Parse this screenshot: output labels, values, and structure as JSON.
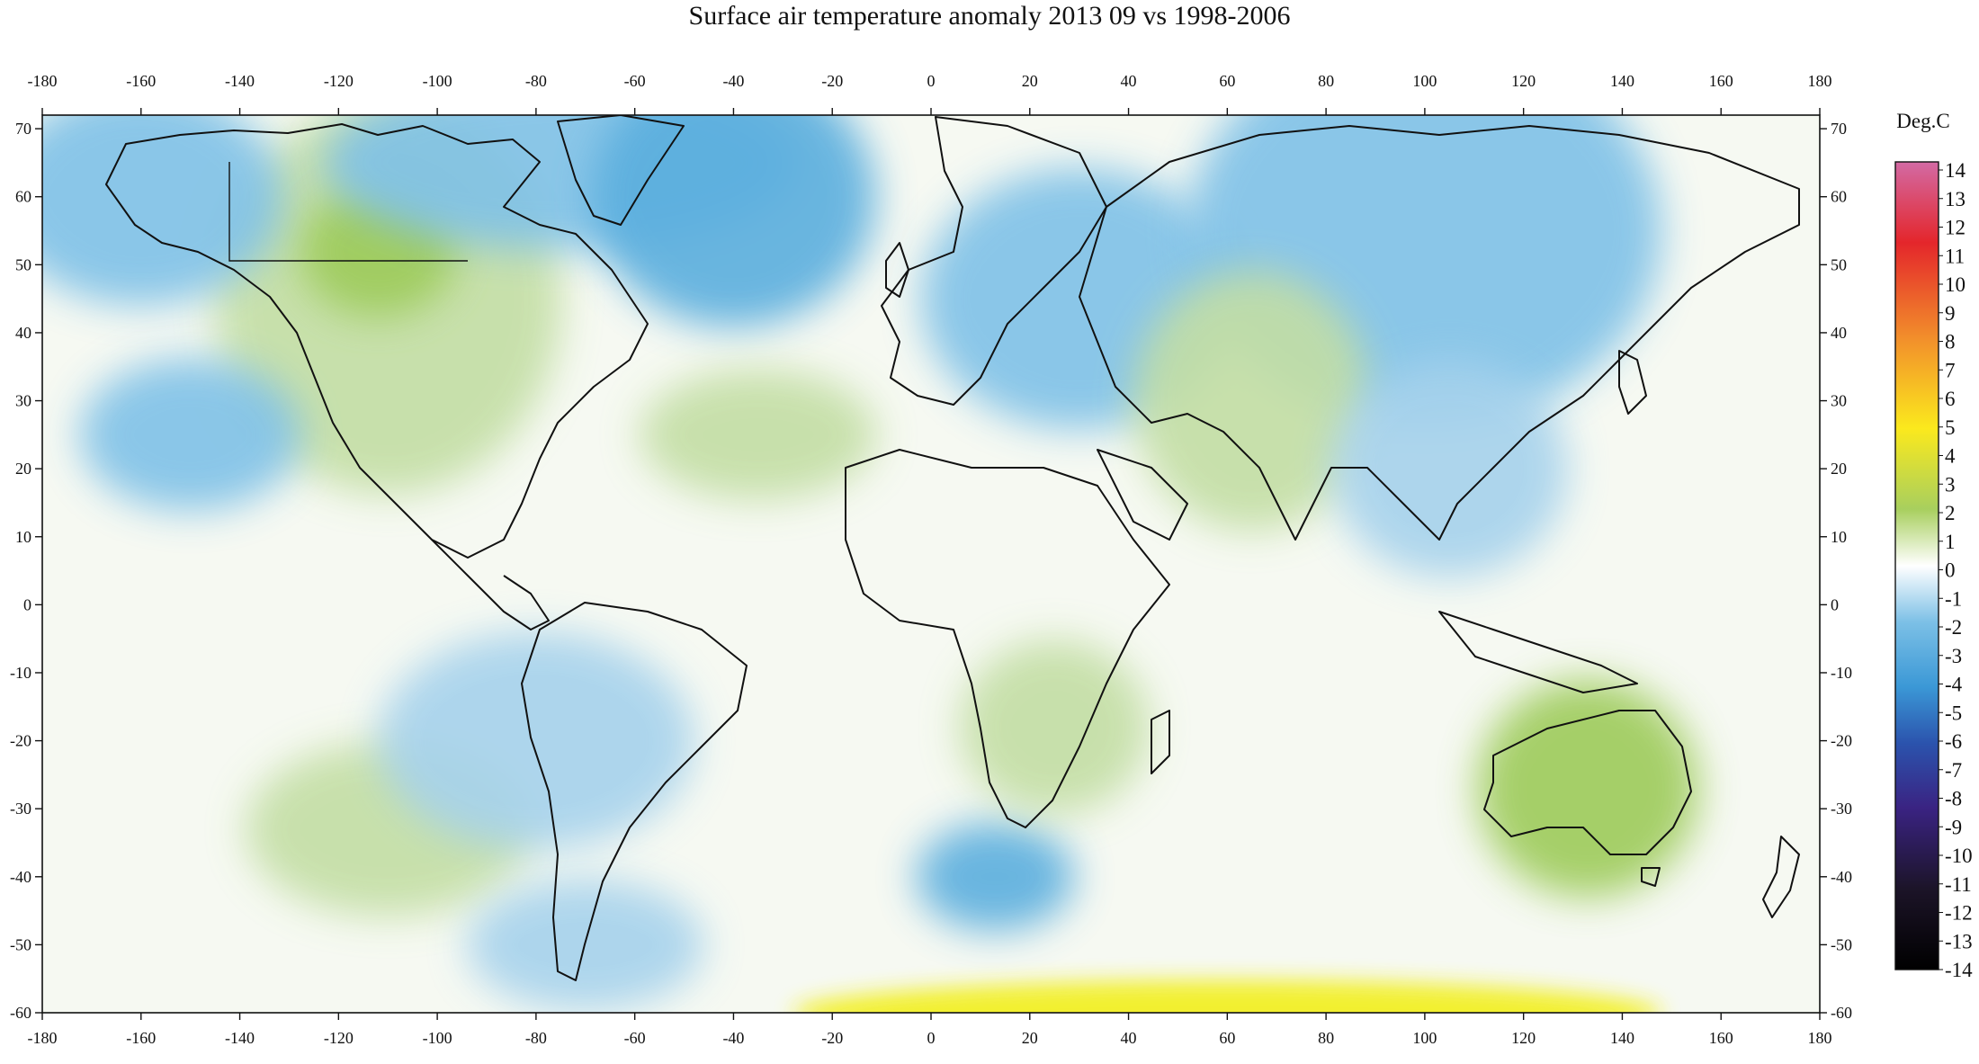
{
  "title": "Surface air temperature anomaly 2013 09 vs 1998-2006",
  "colorbar": {
    "unit": "Deg.C",
    "labels": [
      "14",
      "13",
      "12",
      "11",
      "10",
      "9",
      "8",
      "7",
      "6",
      "5",
      "4",
      "3",
      "2",
      "1",
      "0",
      "-1",
      "-2",
      "-3",
      "-4",
      "-5",
      "-6",
      "-7",
      "-8",
      "-9",
      "-10",
      "-11",
      "-12",
      "-13",
      "-14"
    ],
    "colors": [
      "#d36aa4",
      "#e8157c",
      "#e62d46",
      "#e4262b",
      "#e9422b",
      "#ef6b2a",
      "#f2902b",
      "#f6b22b",
      "#f8d42a",
      "#fbe91d",
      "#eef02a",
      "#c9e04c",
      "#a8cf5e",
      "#d3e6c0",
      "#ffffff",
      "#cfe3ef",
      "#7cc0e6",
      "#3b98d6",
      "#2f6cbf",
      "#2b53ad",
      "#2b44a0",
      "#352f8f",
      "#3a2382",
      "#3b1a6e",
      "#2e1752",
      "#25133d",
      "#1c1428",
      "#141416",
      "#0a0a0a"
    ]
  },
  "axes": {
    "longitude_ticks": [
      -180,
      -160,
      -140,
      -120,
      -100,
      -80,
      -60,
      -40,
      -20,
      0,
      20,
      40,
      60,
      80,
      100,
      120,
      140,
      160,
      180
    ],
    "latitude_ticks": [
      70,
      60,
      50,
      40,
      30,
      20,
      10,
      0,
      -10,
      -20,
      -30,
      -40,
      -50,
      -60
    ],
    "lon_range": [
      -180,
      180
    ],
    "lat_range": [
      -60,
      72
    ]
  },
  "anomaly_regions": [
    {
      "name": "western-north-america",
      "lon": -110,
      "lat": 45,
      "rlon": 22,
      "rlat": 18,
      "value": 1.5
    },
    {
      "name": "canada-west",
      "lon": -112,
      "lat": 52,
      "rlon": 10,
      "rlat": 6,
      "value": 2.2
    },
    {
      "name": "north-atlantic",
      "lon": -75,
      "lat": 65,
      "rlon": 30,
      "rlat": 8,
      "value": -1.8
    },
    {
      "name": "greenland-sea",
      "lon": -40,
      "lat": 60,
      "rlon": 18,
      "rlat": 12,
      "value": -2.0
    },
    {
      "name": "alaska-pacific",
      "lon": -160,
      "lat": 60,
      "rlon": 18,
      "rlat": 10,
      "value": -1.5
    },
    {
      "name": "east-pacific-subtropic",
      "lon": -150,
      "lat": 25,
      "rlon": 14,
      "rlat": 7,
      "value": -1.8
    },
    {
      "name": "central-atlantic",
      "lon": -35,
      "lat": 25,
      "rlon": 15,
      "rlat": 6,
      "value": 1.2
    },
    {
      "name": "eastern-europe",
      "lon": 30,
      "lat": 45,
      "rlon": 20,
      "rlat": 12,
      "value": -1.6
    },
    {
      "name": "siberia",
      "lon": 100,
      "lat": 55,
      "rlon": 30,
      "rlat": 18,
      "value": -1.8
    },
    {
      "name": "central-asia",
      "lon": 65,
      "lat": 30,
      "rlon": 15,
      "rlat": 12,
      "value": 1.5
    },
    {
      "name": "east-asia",
      "lon": 105,
      "lat": 20,
      "rlon": 15,
      "rlat": 10,
      "value": -1.3
    },
    {
      "name": "south-pacific-green",
      "lon": -110,
      "lat": -33,
      "rlon": 18,
      "rlat": 8,
      "value": 1.6
    },
    {
      "name": "south-atlantic-cold",
      "lon": 13,
      "lat": -40,
      "rlon": 10,
      "rlat": 5,
      "value": -2.2
    },
    {
      "name": "southeast-pacific",
      "lon": -80,
      "lat": -20,
      "rlon": 20,
      "rlat": 10,
      "value": -1.3
    },
    {
      "name": "drake-passage",
      "lon": -70,
      "lat": -50,
      "rlon": 15,
      "rlat": 6,
      "value": -1.3
    },
    {
      "name": "southern-africa",
      "lon": 25,
      "lat": -18,
      "rlon": 12,
      "rlat": 8,
      "value": 1.2
    },
    {
      "name": "australia",
      "lon": 133,
      "lat": -27,
      "rlon": 14,
      "rlat": 10,
      "value": 2.4
    },
    {
      "name": "antarctic-margin",
      "lon": 60,
      "lat": -60,
      "rlon": 55,
      "rlat": 3,
      "value": 3.6
    }
  ]
}
